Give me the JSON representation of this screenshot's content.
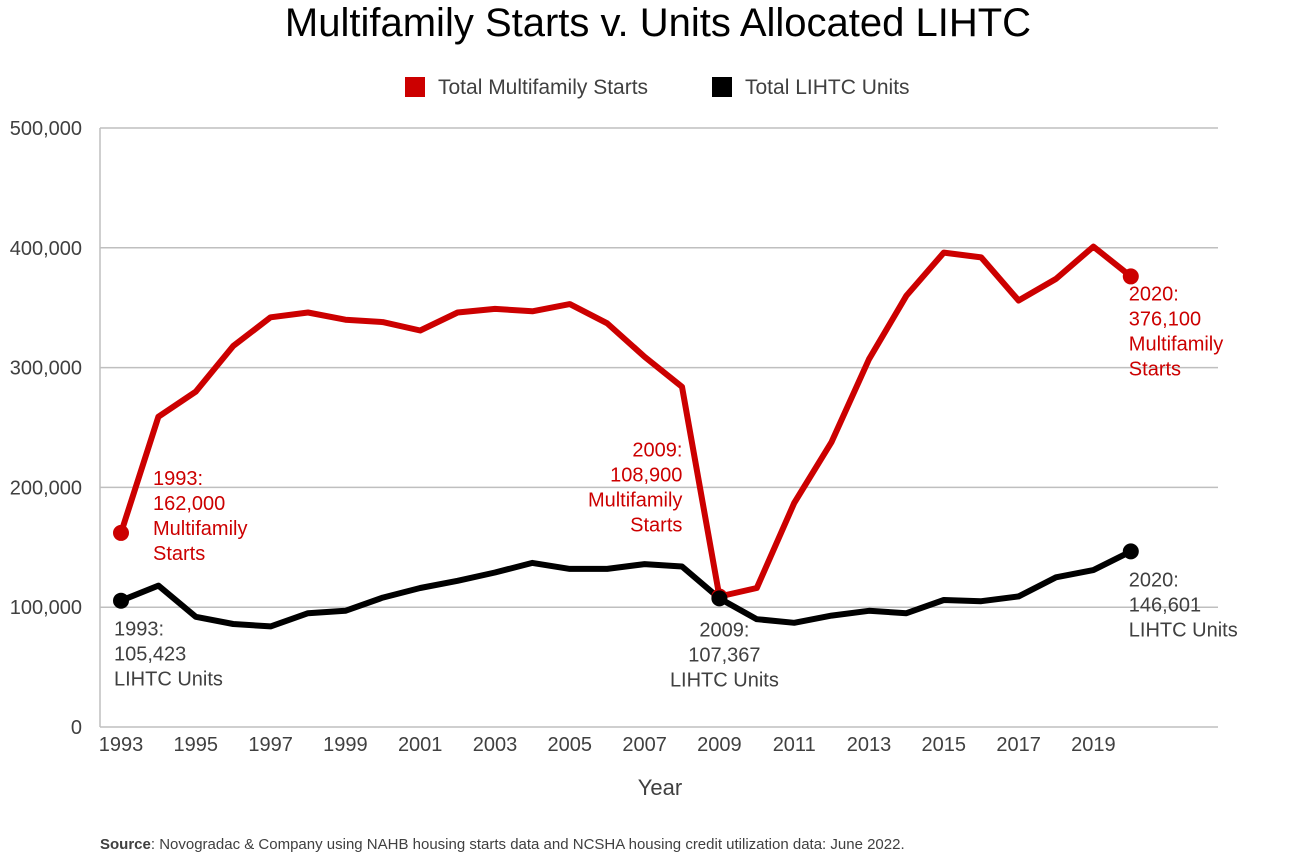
{
  "chart_data": {
    "type": "line",
    "title": "Multifamily Starts v. Units Allocated LIHTC",
    "xlabel": "Year",
    "ylabel": "",
    "x": [
      1993,
      1994,
      1995,
      1996,
      1997,
      1998,
      1999,
      2000,
      2001,
      2002,
      2003,
      2004,
      2005,
      2006,
      2007,
      2008,
      2009,
      2010,
      2011,
      2012,
      2013,
      2014,
      2015,
      2016,
      2017,
      2018,
      2019,
      2020
    ],
    "x_tick_labels": [
      "1993",
      "1995",
      "1997",
      "1999",
      "2001",
      "2003",
      "2005",
      "2007",
      "2009",
      "2011",
      "2013",
      "2015",
      "2017",
      "2019"
    ],
    "ylim": [
      0,
      500000
    ],
    "y_tick_labels": [
      "0",
      "100,000",
      "200,000",
      "300,000",
      "400,000",
      "500,000"
    ],
    "y_ticks": [
      0,
      100000,
      200000,
      300000,
      400000,
      500000
    ],
    "grid": true,
    "legend_position": "top-center",
    "series": [
      {
        "name": "Total Multifamily Starts",
        "color": "#cc0000",
        "values": [
          162000,
          259000,
          280000,
          318000,
          342000,
          346000,
          340000,
          338000,
          331000,
          346000,
          349000,
          347000,
          353000,
          337000,
          309000,
          284000,
          108900,
          116000,
          187000,
          238000,
          307000,
          360000,
          396000,
          392000,
          356000,
          374000,
          401000,
          376100
        ]
      },
      {
        "name": "Total LIHTC Units",
        "color": "#000000",
        "values": [
          105423,
          118000,
          92000,
          86000,
          84000,
          95000,
          97000,
          108000,
          116000,
          122000,
          129000,
          137000,
          132000,
          132000,
          136000,
          134000,
          107367,
          90000,
          87000,
          93000,
          97000,
          95000,
          106000,
          105000,
          109000,
          125000,
          131000,
          146601
        ]
      }
    ],
    "annotations": [
      {
        "series": 0,
        "index": 0,
        "lines": [
          "1993:",
          "162,000",
          "Multifamily",
          "Starts"
        ]
      },
      {
        "series": 0,
        "index": 16,
        "lines": [
          "2009:",
          "108,900",
          "Multifamily",
          "Starts"
        ]
      },
      {
        "series": 0,
        "index": 27,
        "lines": [
          "2020:",
          "376,100",
          "Multifamily",
          "Starts"
        ]
      },
      {
        "series": 1,
        "index": 0,
        "lines": [
          "1993:",
          "105,423",
          "LIHTC Units"
        ]
      },
      {
        "series": 1,
        "index": 16,
        "lines": [
          "2009:",
          "107,367",
          "LIHTC Units"
        ]
      },
      {
        "series": 1,
        "index": 27,
        "lines": [
          "2020:",
          "146,601",
          "LIHTC Units"
        ]
      }
    ],
    "source_label": "Source",
    "source_text": ": Novogradac & Company using NAHB housing starts data and NCSHA housing credit utilization data: June 2022."
  }
}
